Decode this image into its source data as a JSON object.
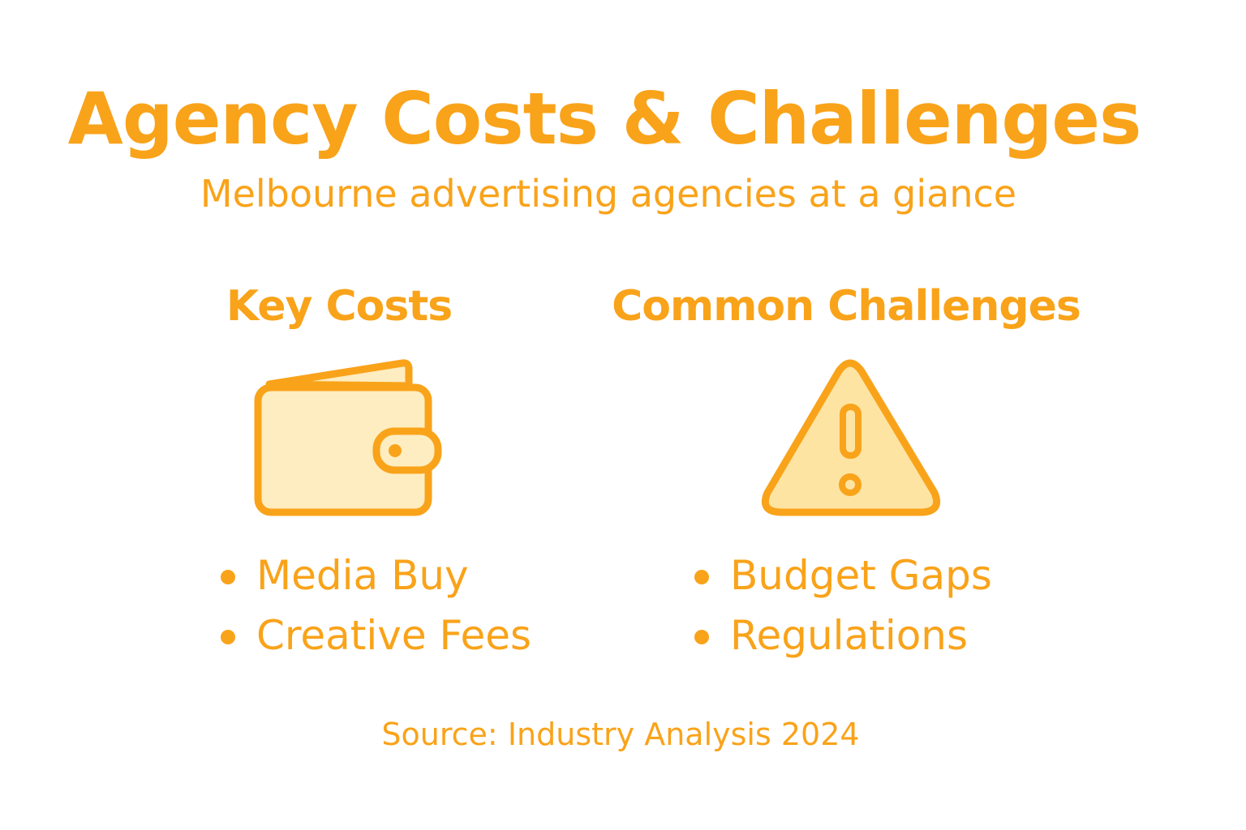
{
  "title": "Agency Costs & Challenges",
  "subtitle": "Melbourne advertising agencies at a giance",
  "colors": {
    "accent": "#F9A31A",
    "icon_fill": "#FEEDC0",
    "warning_fill": "#FEE4A2"
  },
  "sections": [
    {
      "heading": "Key Costs",
      "icon": "wallet-icon",
      "items": [
        "Media Buy",
        "Creative Fees"
      ]
    },
    {
      "heading": "Common Challenges",
      "icon": "warning-triangle-icon",
      "items": [
        "Budget Gaps",
        "Regulations"
      ]
    }
  ],
  "source": "Source: Industry Analysis 2024"
}
